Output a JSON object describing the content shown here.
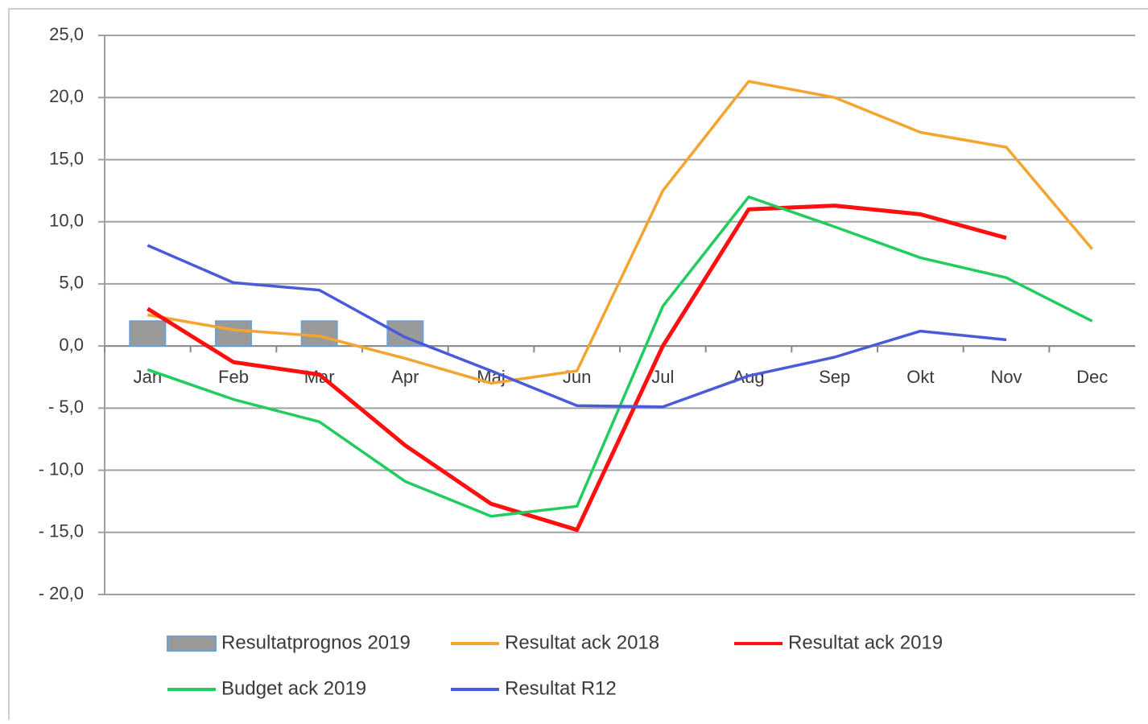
{
  "chart_data": {
    "type": "line",
    "categories": [
      "Jan",
      "Feb",
      "Mar",
      "Apr",
      "Maj",
      "Jun",
      "Jul",
      "Aug",
      "Sep",
      "Okt",
      "Nov",
      "Dec"
    ],
    "ylim": [
      -20,
      25
    ],
    "yticks": [
      {
        "value": -20,
        "label": "- 20,0"
      },
      {
        "value": -15,
        "label": "- 15,0"
      },
      {
        "value": -10,
        "label": "- 10,0"
      },
      {
        "value": -5,
        "label": "- 5,0"
      },
      {
        "value": 0,
        "label": "0,0"
      },
      {
        "value": 5,
        "label": "5,0"
      },
      {
        "value": 10,
        "label": "10,0"
      },
      {
        "value": 15,
        "label": "15,0"
      },
      {
        "value": 20,
        "label": "20,0"
      },
      {
        "value": 25,
        "label": "25,0"
      }
    ],
    "grid": true,
    "legend": "bottom",
    "series": [
      {
        "name": "Resultatprognos 2019",
        "type": "bar",
        "color": "#9a9a9a",
        "values": [
          2.0,
          2.0,
          2.0,
          2.0,
          null,
          null,
          null,
          null,
          null,
          null,
          null,
          null
        ]
      },
      {
        "name": "Resultat ack 2018",
        "color": "#f4a431",
        "values": [
          2.5,
          1.3,
          0.8,
          -1.0,
          -3.0,
          -2.0,
          12.5,
          21.3,
          20.0,
          17.2,
          16.0,
          7.8
        ]
      },
      {
        "name": "Resultat ack 2019",
        "color": "#ff1010",
        "values": [
          3.0,
          -1.3,
          -2.3,
          -8.0,
          -12.7,
          -14.8,
          0.0,
          11.0,
          11.3,
          10.6,
          8.7,
          null
        ]
      },
      {
        "name": "Budget ack 2019",
        "color": "#22cc5e",
        "values": [
          -1.9,
          -4.3,
          -6.1,
          -10.9,
          -13.7,
          -12.9,
          3.2,
          12.0,
          9.6,
          7.1,
          5.5,
          2.0
        ]
      },
      {
        "name": "Resultat R12",
        "color": "#4a5ad8",
        "values": [
          8.1,
          5.1,
          4.5,
          0.7,
          -2.0,
          -4.8,
          -4.9,
          -2.4,
          -0.9,
          1.2,
          0.5,
          null
        ]
      }
    ]
  }
}
